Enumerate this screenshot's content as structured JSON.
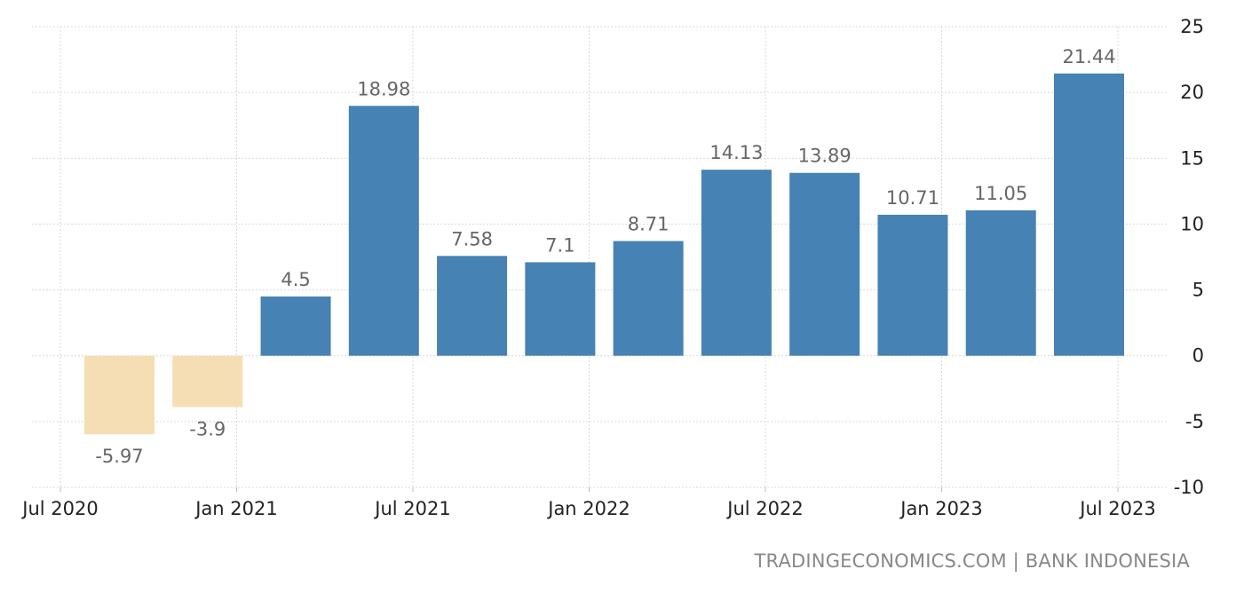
{
  "chart_data": {
    "type": "bar",
    "categories": [
      "Jul 2020",
      "Oct 2020",
      "Jan 2021",
      "Apr 2021",
      "Jul 2021",
      "Oct 2021",
      "Jan 2022",
      "Apr 2022",
      "Jul 2022",
      "Oct 2022",
      "Jan 2023",
      "Apr 2023"
    ],
    "values": [
      -5.97,
      -3.9,
      4.5,
      18.98,
      7.58,
      7.1,
      8.71,
      14.13,
      13.89,
      10.71,
      11.05,
      21.44
    ],
    "data_labels": [
      "-5.97",
      "-3.9",
      "4.5",
      "18.98",
      "7.58",
      "7.1",
      "8.71",
      "14.13",
      "13.89",
      "10.71",
      "11.05",
      "21.44"
    ],
    "x_ticks": [
      "Jul 2020",
      "Jan 2021",
      "Jul 2021",
      "Jan 2022",
      "Jul 2022",
      "Jan 2023",
      "Jul 2023"
    ],
    "y_ticks": [
      25,
      20,
      15,
      10,
      5,
      0,
      -5,
      -10
    ],
    "ylim": [
      -10,
      25
    ],
    "y_axis_side": "right",
    "grid": true,
    "colors": {
      "positive": "#4682b4",
      "negative": "#f5deb3"
    }
  },
  "source_text": "TRADINGECONOMICS.COM | BANK INDONESIA"
}
